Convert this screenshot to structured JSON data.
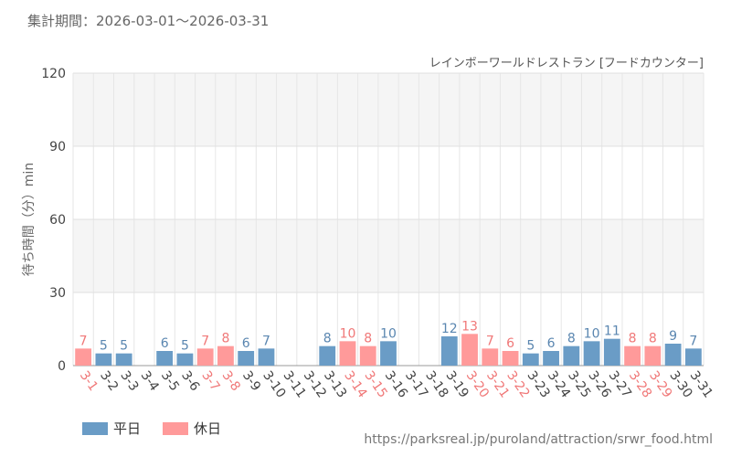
{
  "header": {
    "period_text": "集計期間：2026-03-01～2026-03-31"
  },
  "source_text": "https://parksreal.jp/puroland/attraction/srwr_food.html",
  "colors": {
    "weekday": "#6a9cc6",
    "holiday": "#ff9a9a",
    "weekday_label": "#5a86b0",
    "holiday_label": "#f07878"
  },
  "chart_data": {
    "type": "bar",
    "title": "",
    "subtitle": "レインボーワールドレストラン [フードカウンター]",
    "xlabel": "",
    "ylabel": "待ち時間（分）min",
    "ylim": [
      0,
      120
    ],
    "yticks": [
      0,
      30,
      60,
      90,
      120
    ],
    "grid": true,
    "legend_position": "bottom-left",
    "legend": [
      {
        "name": "平日",
        "key": "weekday"
      },
      {
        "name": "休日",
        "key": "holiday"
      }
    ],
    "categories": [
      "3-1",
      "3-2",
      "3-3",
      "3-4",
      "3-5",
      "3-6",
      "3-7",
      "3-8",
      "3-9",
      "3-10",
      "3-11",
      "3-12",
      "3-13",
      "3-14",
      "3-15",
      "3-16",
      "3-17",
      "3-18",
      "3-19",
      "3-20",
      "3-21",
      "3-22",
      "3-23",
      "3-24",
      "3-25",
      "3-26",
      "3-27",
      "3-28",
      "3-29",
      "3-30",
      "3-31"
    ],
    "values": [
      7,
      5,
      5,
      null,
      6,
      5,
      7,
      8,
      6,
      7,
      null,
      null,
      8,
      10,
      8,
      10,
      null,
      null,
      12,
      13,
      7,
      6,
      5,
      6,
      8,
      10,
      11,
      8,
      8,
      9,
      7
    ],
    "day_type": [
      "holiday",
      "weekday",
      "weekday",
      "weekday",
      "weekday",
      "weekday",
      "holiday",
      "holiday",
      "weekday",
      "weekday",
      "weekday",
      "weekday",
      "weekday",
      "holiday",
      "holiday",
      "weekday",
      "weekday",
      "weekday",
      "weekday",
      "holiday",
      "holiday",
      "holiday",
      "weekday",
      "weekday",
      "weekday",
      "weekday",
      "weekday",
      "holiday",
      "holiday",
      "weekday",
      "weekday"
    ]
  }
}
